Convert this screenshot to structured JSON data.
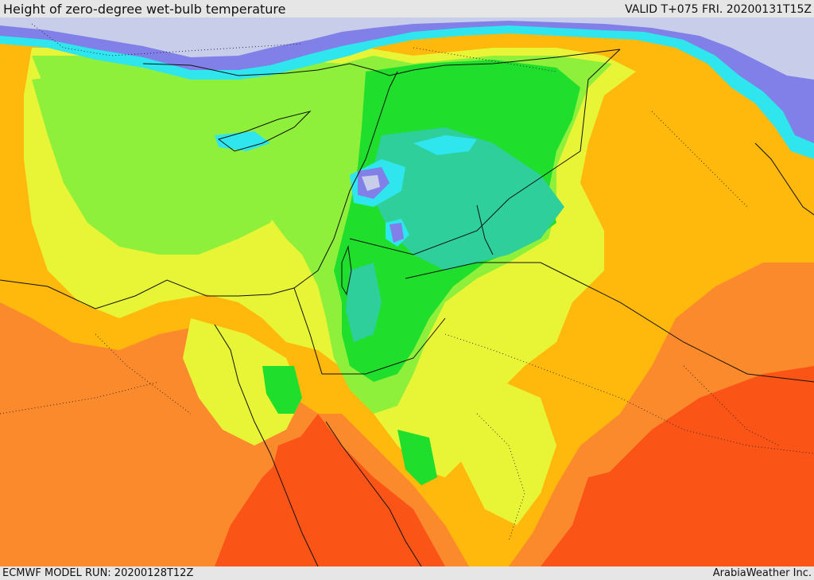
{
  "header": {
    "title": "Height of zero-degree wet-bulb temperature",
    "valid": "VALID T+075 FRI. 20200131T15Z"
  },
  "footer": {
    "model_run": "ECMWF MODEL RUN: 20200128T12Z",
    "credit": "ArabiaWeather Inc."
  },
  "map": {
    "field": "zero-degree wet-bulb height",
    "colors": {
      "lowest": "#c8cdea",
      "very_low": "#8080e8",
      "low": "#2fe6ef",
      "low_mid": "#2ecf9a",
      "mid_low": "#1fdf2c",
      "mid": "#8ef03a",
      "mid_high": "#e8f536",
      "high": "#ffb80c",
      "higher": "#fb8a2c",
      "highest": "#fb5417"
    }
  }
}
